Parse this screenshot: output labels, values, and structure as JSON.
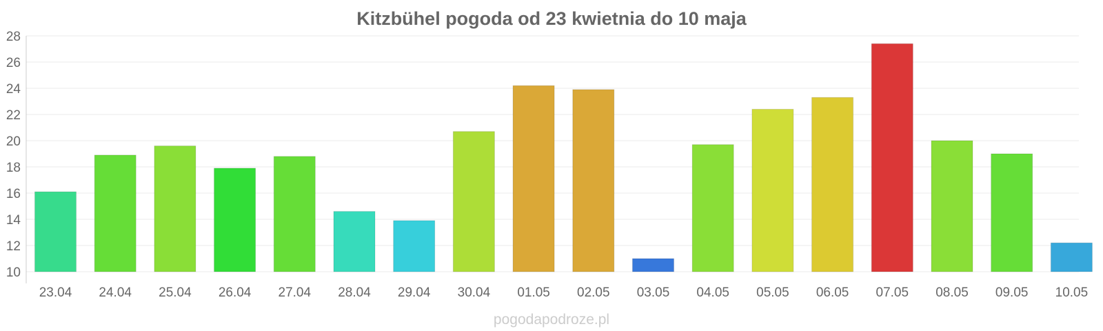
{
  "chart_data": {
    "type": "bar",
    "title": "Kitzbühel pogoda od 23 kwietnia do 10 maja",
    "xlabel": "",
    "ylabel": "",
    "ylim": [
      10,
      28
    ],
    "yticks": [
      10,
      12,
      14,
      16,
      18,
      20,
      22,
      24,
      26,
      28
    ],
    "grid": true,
    "legend": "none",
    "categories": [
      "23.04",
      "24.04",
      "25.04",
      "26.04",
      "27.04",
      "28.04",
      "29.04",
      "30.04",
      "01.05",
      "02.05",
      "03.05",
      "04.05",
      "05.05",
      "06.05",
      "07.05",
      "08.05",
      "09.05",
      "10.05"
    ],
    "values": [
      16.1,
      18.9,
      19.6,
      17.9,
      18.8,
      14.6,
      13.9,
      20.7,
      24.2,
      23.9,
      11.0,
      19.7,
      22.4,
      23.3,
      27.4,
      20.0,
      19.0,
      12.2
    ],
    "colors": [
      "#37db8c",
      "#66dd37",
      "#8ade37",
      "#31dd37",
      "#66dd37",
      "#37dbbb",
      "#37cfdb",
      "#addd37",
      "#daa837",
      "#daa837",
      "#3778db",
      "#8ade37",
      "#cfdd37",
      "#dcca31",
      "#db3737",
      "#8ade37",
      "#66dd37",
      "#37a8db"
    ]
  },
  "watermark": "pogodapodroze.pl"
}
